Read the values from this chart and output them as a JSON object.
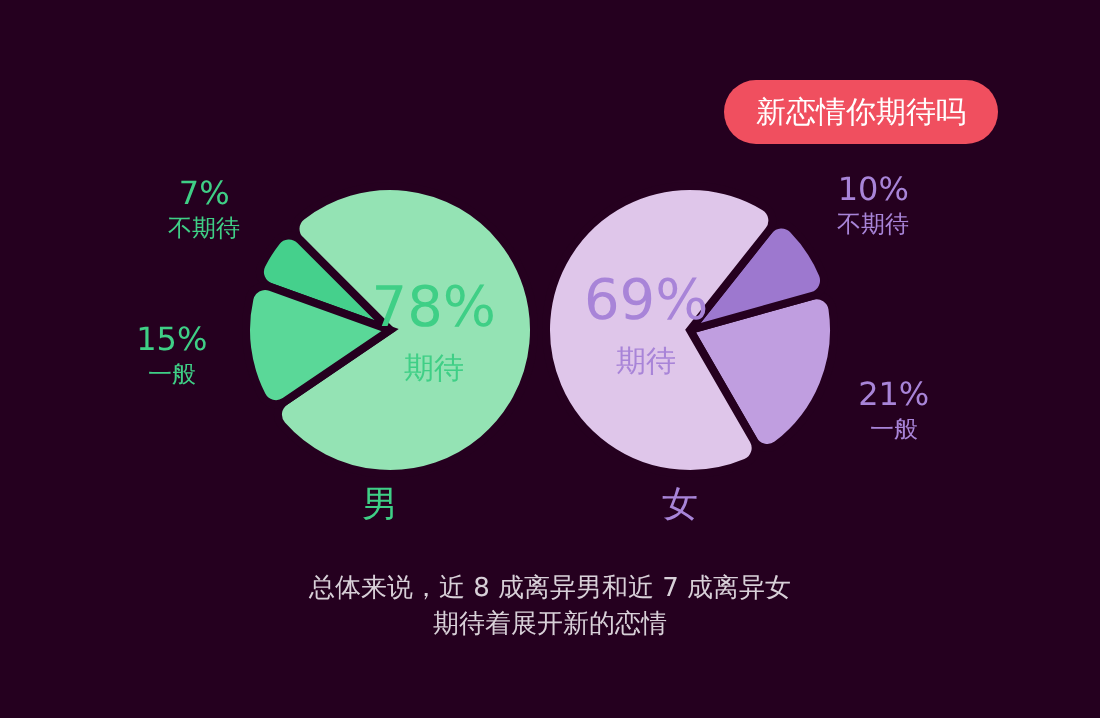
{
  "chart_data": [
    {
      "type": "pie",
      "title": "新恋情你期待吗",
      "xlabel": "男",
      "categories": [
        "期待",
        "不期待",
        "一般"
      ],
      "values": [
        78,
        7,
        15
      ],
      "colors": [
        "#94e3b4",
        "#45d08c",
        "#5ad898"
      ],
      "value_labels": [
        "78%",
        "7%",
        "15%"
      ],
      "annotations": [
        "总体来说，近 8 成离异男和近 7 成离异女",
        "期待着展开新的恋情"
      ]
    },
    {
      "type": "pie",
      "xlabel": "女",
      "categories": [
        "一般",
        "不期待",
        "期待"
      ],
      "values": [
        21,
        10,
        69
      ],
      "colors": [
        "#c09ee0",
        "#9d78cf",
        "#dfc6ea"
      ],
      "value_labels": [
        "21%",
        "10%",
        "69%"
      ]
    }
  ]
}
